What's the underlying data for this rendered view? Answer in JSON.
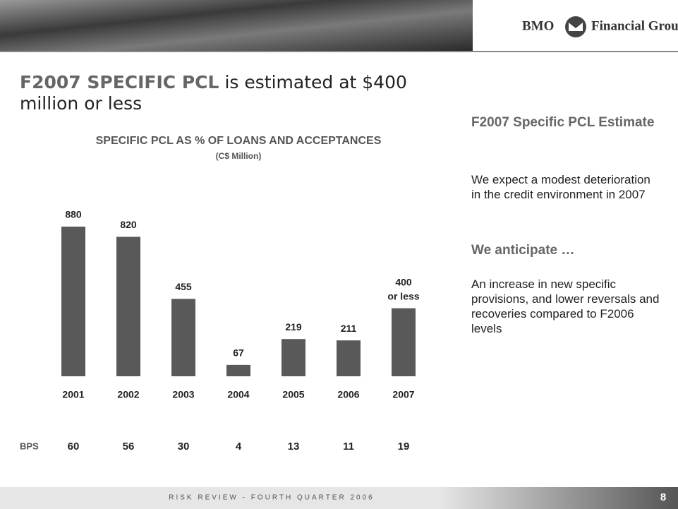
{
  "slide": {
    "logo": {
      "brand": "BMO",
      "group": "Financial Group"
    },
    "heading": {
      "accent": "F2007 SPECIFIC PCL",
      "rest": "is estimated at $400",
      "line2": "million or less"
    },
    "side": {
      "heading": "F2007 Specific PCL Estimate",
      "text1": "We expect a modest deterioration in the credit environment  in 2007",
      "heading2": "We anticipate …",
      "text2": "An increase in new specific provisions, and lower reversals and recoveries compared to F2006 levels"
    },
    "footer": {
      "text": "RISK REVIEW - FOURTH QUARTER 2006",
      "page": "8"
    }
  },
  "chart_data": {
    "type": "bar",
    "title": "SPECIFIC PCL AS % OF LOANS AND ACCEPTANCES",
    "subtitle": "(C$ Million)",
    "categories": [
      "2001",
      "2002",
      "2003",
      "2004",
      "2005",
      "2006",
      "2007"
    ],
    "values": [
      880,
      820,
      455,
      67,
      219,
      211,
      400
    ],
    "value_labels": [
      "880",
      "820",
      "455",
      "67",
      "219",
      "211",
      "400 or less"
    ],
    "color": "#595959",
    "bps": {
      "label": "BPS",
      "values": [
        60,
        56,
        30,
        4,
        13,
        11,
        19
      ]
    }
  }
}
